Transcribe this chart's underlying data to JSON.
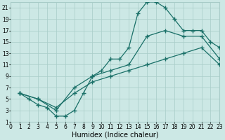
{
  "background_color": "#cce8e5",
  "grid_color": "#a8ccc8",
  "line_color": "#1a7068",
  "xlim": [
    0,
    23
  ],
  "ylim": [
    1,
    22
  ],
  "xticks": [
    0,
    1,
    2,
    3,
    4,
    5,
    6,
    7,
    8,
    9,
    10,
    11,
    12,
    13,
    14,
    15,
    16,
    17,
    18,
    19,
    20,
    21,
    22,
    23
  ],
  "yticks": [
    1,
    3,
    5,
    7,
    9,
    11,
    13,
    15,
    17,
    19,
    21
  ],
  "xlabel": "Humidex (Indice chaleur)",
  "xlabel_fontsize": 7,
  "tick_fontsize": 5.5,
  "curve1_x": [
    1,
    2,
    3,
    4,
    5,
    6,
    7,
    8,
    9,
    10,
    11,
    12,
    13,
    14,
    15,
    16,
    17,
    18,
    19,
    20,
    21,
    22,
    23
  ],
  "curve1_y": [
    6,
    5,
    4,
    3.5,
    2,
    2,
    3,
    6,
    9,
    10,
    12,
    12,
    14,
    20,
    22,
    22,
    21,
    19,
    17,
    17,
    17,
    15,
    14
  ],
  "curve2_x": [
    1,
    3,
    5,
    7,
    9,
    11,
    13,
    15,
    17,
    19,
    21,
    23
  ],
  "curve2_y": [
    6,
    5,
    3,
    7,
    9,
    10,
    11,
    16,
    17,
    16,
    16,
    12
  ],
  "curve3_x": [
    1,
    3,
    5,
    7,
    9,
    11,
    13,
    15,
    17,
    19,
    21,
    23
  ],
  "curve3_y": [
    6,
    5,
    3.5,
    6,
    8,
    9,
    10,
    11,
    12,
    13,
    14,
    11
  ]
}
